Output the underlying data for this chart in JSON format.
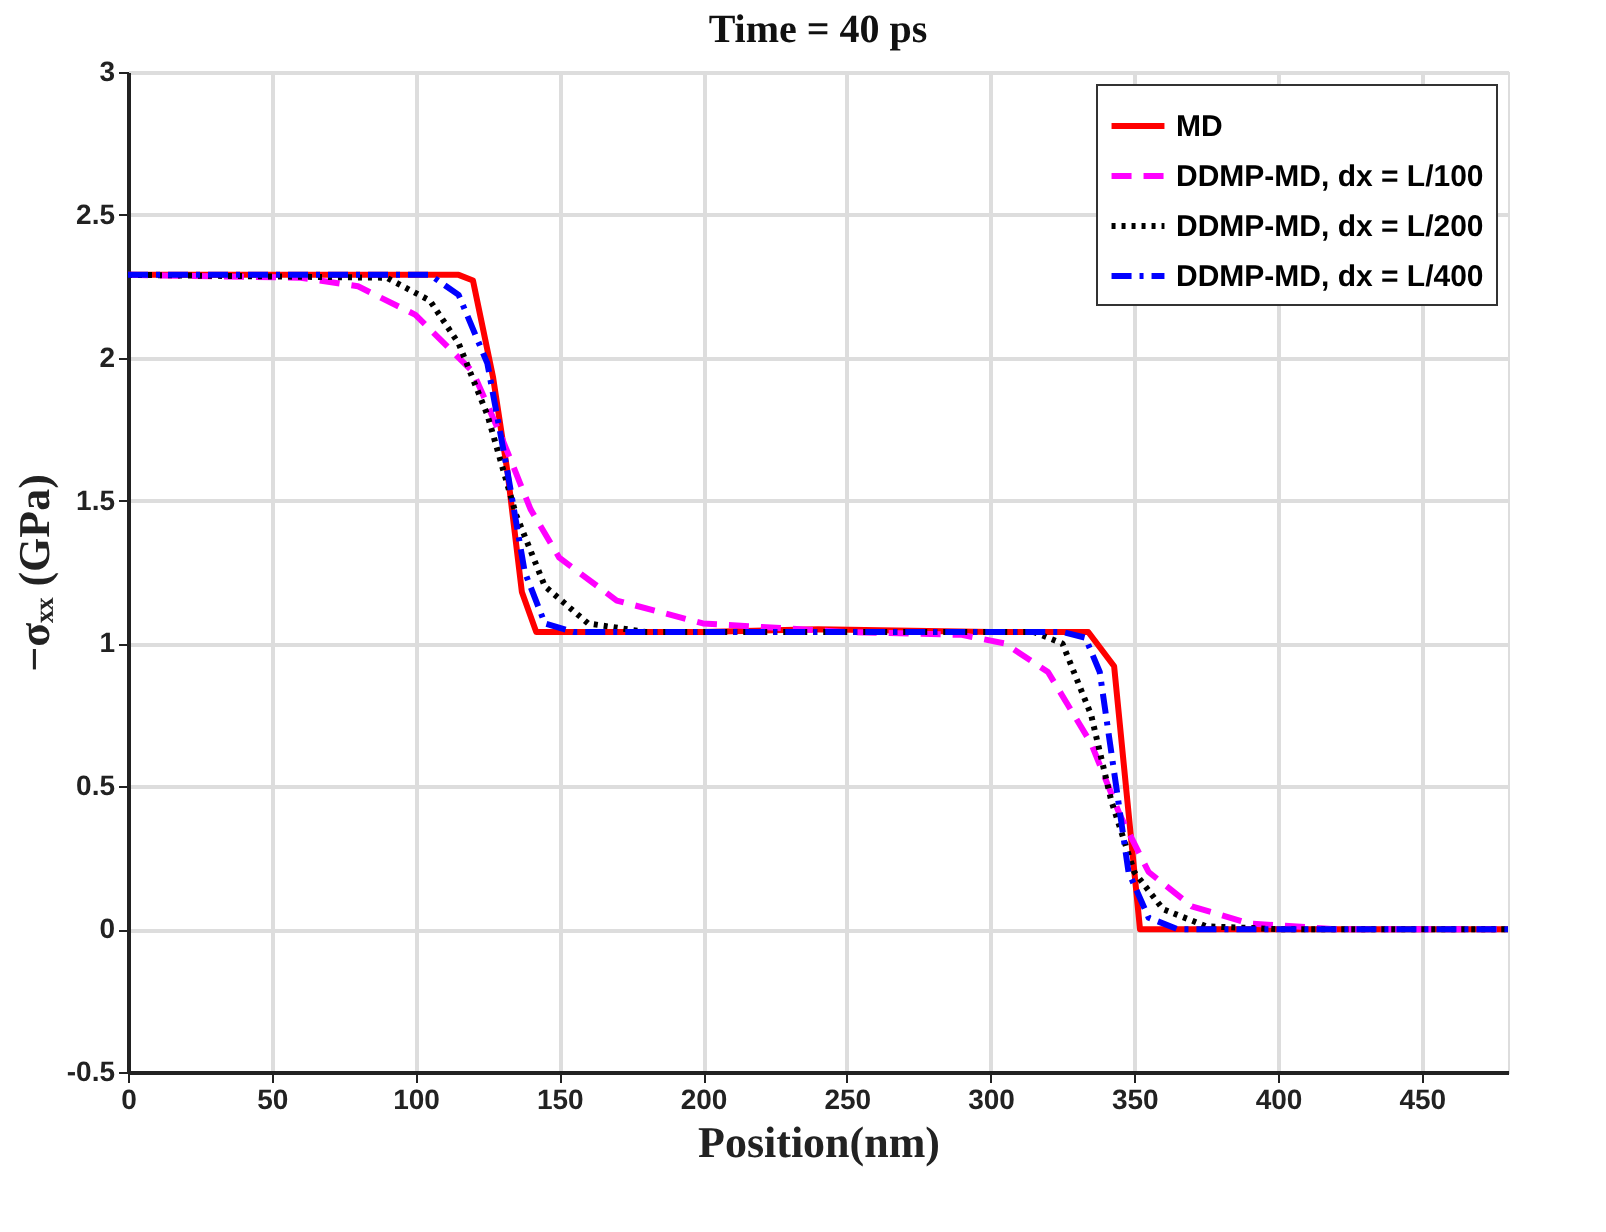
{
  "chart_data": {
    "type": "line",
    "title": "Time = 40 ps",
    "xlabel": "Position(nm)",
    "ylabel": "−σₓₓ (GPa)",
    "xlim": [
      0,
      480
    ],
    "xticks": [
      0,
      50,
      100,
      150,
      200,
      250,
      300,
      350,
      400,
      450
    ],
    "ylim": [
      -0.5,
      3
    ],
    "yticks": [
      -0.5,
      0,
      0.5,
      1,
      1.5,
      2,
      2.5,
      3
    ],
    "grid": true,
    "legend": "top right",
    "series": [
      {
        "name": "MD",
        "color": "#ff0000",
        "line_style": "solid",
        "x": [
          0,
          115,
          120,
          127,
          132,
          137,
          142,
          150,
          200,
          240,
          300,
          334,
          343,
          352,
          480
        ],
        "values": [
          2.29,
          2.29,
          2.27,
          1.93,
          1.6,
          1.18,
          1.04,
          1.04,
          1.04,
          1.05,
          1.04,
          1.04,
          0.92,
          0,
          0
        ]
      },
      {
        "name": "DDMP-MD, dx = L/100",
        "color": "#ff00ff",
        "line_style": "dashed",
        "x": [
          0,
          60,
          80,
          100,
          120,
          130,
          140,
          150,
          170,
          200,
          250,
          290,
          305,
          320,
          335,
          345,
          355,
          370,
          390,
          420,
          480
        ],
        "values": [
          2.29,
          2.28,
          2.25,
          2.15,
          1.95,
          1.72,
          1.47,
          1.3,
          1.15,
          1.07,
          1.04,
          1.03,
          1.0,
          0.9,
          0.65,
          0.4,
          0.2,
          0.08,
          0.02,
          0,
          0
        ]
      },
      {
        "name": "DDMP-MD, dx = L/200",
        "color": "#000000",
        "line_style": "dotted",
        "x": [
          0,
          90,
          105,
          115,
          125,
          135,
          145,
          160,
          180,
          315,
          325,
          335,
          342,
          350,
          360,
          375,
          400,
          480
        ],
        "values": [
          2.29,
          2.28,
          2.2,
          2.05,
          1.8,
          1.45,
          1.2,
          1.07,
          1.04,
          1.04,
          1.0,
          0.75,
          0.45,
          0.2,
          0.07,
          0.01,
          0,
          0
        ]
      },
      {
        "name": "DDMP-MD, dx = L/400",
        "color": "#0000ff",
        "line_style": "dashdot",
        "x": [
          0,
          105,
          115,
          125,
          132,
          138,
          145,
          155,
          325,
          333,
          338,
          343,
          348,
          355,
          365,
          480
        ],
        "values": [
          2.29,
          2.29,
          2.22,
          1.98,
          1.6,
          1.25,
          1.07,
          1.04,
          1.04,
          1.02,
          0.9,
          0.55,
          0.2,
          0.04,
          0,
          0
        ]
      }
    ]
  }
}
